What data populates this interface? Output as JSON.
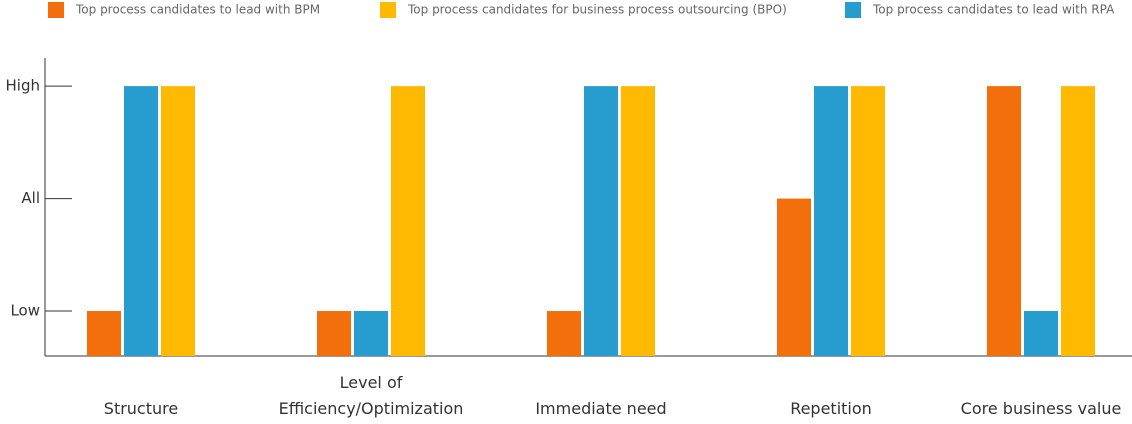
{
  "chart_data": {
    "type": "bar",
    "categories": [
      "Structure",
      "Level of\nEfficiency/Optimization",
      "Immediate need",
      "Repetition",
      "Core business value"
    ],
    "series": [
      {
        "name": "Top process candidates to lead with BPM",
        "color": "#f26f0c",
        "values": [
          1,
          1,
          1,
          2,
          3
        ]
      },
      {
        "name": "Top process candidates for business process outsourcing (BPO)",
        "color": "#ffba00",
        "values": [
          3,
          3,
          3,
          3,
          3
        ]
      },
      {
        "name": "Top process candidates to lead with RPA",
        "color": "#279ccf",
        "values": [
          3,
          1,
          3,
          3,
          1
        ]
      }
    ],
    "ylim": [
      0.6,
      3.25
    ],
    "yticks": [
      {
        "value": 1,
        "label": "Low"
      },
      {
        "value": 2,
        "label": "All"
      },
      {
        "value": 3,
        "label": "High"
      }
    ],
    "legend": "top"
  }
}
